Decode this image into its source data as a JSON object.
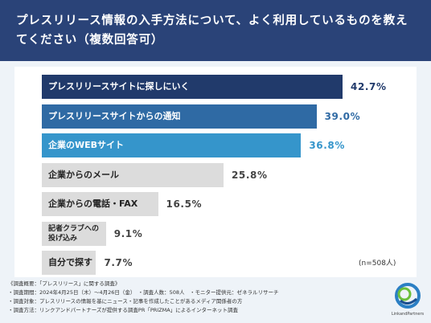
{
  "header": {
    "title": "プレスリリース情報の入手方法について、よく利用しているものを教えてください（複数回答可）"
  },
  "chart_data": {
    "type": "bar",
    "orientation": "horizontal",
    "categories": [
      "プレスリリースサイトに探しにいく",
      "プレスリリースサイトからの通知",
      "企業のWEBサイト",
      "企業からのメール",
      "企業からの電話・FAX",
      "記者クラブへの投げ込み",
      "自分で探す"
    ],
    "values": [
      42.7,
      39.0,
      36.8,
      25.8,
      16.5,
      9.1,
      7.7
    ],
    "value_labels": [
      "42.7%",
      "39.0%",
      "36.8%",
      "25.8%",
      "16.5%",
      "9.1%",
      "7.7%"
    ],
    "bar_colors": [
      "#213a6b",
      "#2f6aa4",
      "#3595cb",
      "#dcdcdc",
      "#dcdcdc",
      "#dcdcdc",
      "#dcdcdc"
    ],
    "label_colors": [
      "#ffffff",
      "#ffffff",
      "#ffffff",
      "#222222",
      "#222222",
      "#222222",
      "#222222"
    ],
    "value_colors": [
      "#213a6b",
      "#2f6aa4",
      "#3595cb",
      "#444444",
      "#444444",
      "#444444",
      "#444444"
    ],
    "note": "(n=508人)",
    "xlim": [
      0,
      100
    ]
  },
  "footer": {
    "lines": [
      "《調査概要：「プレスリリース」に関する調査》",
      "・調査期間：2024年4月25日（木）〜4月26日（金）　・調査人数：508人　・モニター提供元：ゼネラルリサーチ",
      "・調査対象：プレスリリースの情報を基にニュース・記事を作成したことがあるメディア関係者の方",
      "・調査方法：リンクアンドパートナーズが提供する調査PR「PRIZMA」によるインターネット調査"
    ]
  },
  "logo": {
    "text": "LinkandPartners",
    "colors": [
      "#2b7fc4",
      "#6bbf3b",
      "#1c4f8f"
    ]
  }
}
